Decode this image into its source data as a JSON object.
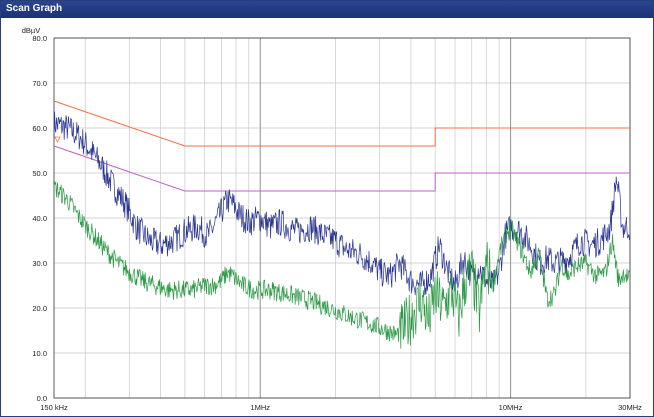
{
  "window": {
    "title": "Scan Graph"
  },
  "chart_data": {
    "type": "line",
    "ylabel": "dBµV",
    "xscale": "log",
    "xlim_hz": [
      150000,
      30000000
    ],
    "ylim": [
      0,
      80
    ],
    "grid": true,
    "yticks": [
      {
        "value": 80,
        "label": "80.0"
      },
      {
        "value": 70,
        "label": "70.0"
      },
      {
        "value": 60,
        "label": "60.0"
      },
      {
        "value": 50,
        "label": "50.0"
      },
      {
        "value": 40,
        "label": "40.0"
      },
      {
        "value": 30,
        "label": "30.0"
      },
      {
        "value": 20,
        "label": "20.0"
      },
      {
        "value": 10,
        "label": "10.0"
      },
      {
        "value": 0,
        "label": "0.0"
      }
    ],
    "xticks": [
      {
        "value": 150000,
        "label": "150 kHz"
      },
      {
        "value": 1000000,
        "label": "1MHz"
      },
      {
        "value": 10000000,
        "label": "10MHz"
      },
      {
        "value": 30000000,
        "label": "30MHz"
      }
    ],
    "limit_lines": [
      {
        "color": "#f07048",
        "points": [
          [
            150000,
            66
          ],
          [
            500000,
            56
          ],
          [
            5000000,
            56
          ],
          [
            5000000,
            60
          ],
          [
            30000000,
            60
          ]
        ]
      },
      {
        "color": "#c060c8",
        "points": [
          [
            150000,
            56
          ],
          [
            500000,
            46
          ],
          [
            5000000,
            46
          ],
          [
            5000000,
            50
          ],
          [
            30000000,
            50
          ]
        ]
      }
    ],
    "series": [
      {
        "color": "#2a3590",
        "x": [
          150000,
          170000,
          190000,
          210000,
          230000,
          260000,
          290000,
          320000,
          360000,
          400000,
          450000,
          500000,
          560000,
          620000,
          680000,
          740000,
          780000,
          820000,
          900000,
          1000000,
          1100000,
          1200000,
          1400000,
          1600000,
          1800000,
          2000000,
          2200000,
          2500000,
          2800000,
          3000000,
          3300000,
          3600000,
          4000000,
          4400000,
          4800000,
          5200000,
          5600000,
          6000000,
          6500000,
          7000000,
          7500000,
          8000000,
          8500000,
          9000000,
          9500000,
          10000000,
          11000000,
          12000000,
          13000000,
          14000000,
          15000000,
          17000000,
          19000000,
          21000000,
          23000000,
          25000000,
          26500000,
          28000000,
          30000000
        ],
        "y": [
          61,
          60,
          58,
          55,
          52,
          47,
          43,
          38,
          35,
          34,
          35,
          37,
          38,
          36,
          40,
          44,
          43,
          41,
          39,
          40,
          38,
          39,
          37,
          38,
          36,
          35,
          33,
          32,
          30,
          28,
          27,
          30,
          26,
          25,
          27,
          34,
          28,
          25,
          31,
          27,
          29,
          26,
          25,
          28,
          36,
          38,
          37,
          34,
          30,
          31,
          30,
          31,
          35,
          34,
          35,
          38,
          49,
          38,
          38
        ]
      },
      {
        "color": "#2c9a45",
        "x": [
          150000,
          170000,
          190000,
          210000,
          240000,
          270000,
          300000,
          340000,
          380000,
          430000,
          480000,
          540000,
          600000,
          650000,
          700000,
          740000,
          780000,
          850000,
          950000,
          1100000,
          1300000,
          1500000,
          1700000,
          1900000,
          2100000,
          2300000,
          2600000,
          2900000,
          3200000,
          3500000,
          3800000,
          4100000,
          4400000,
          4700000,
          5000000,
          5400000,
          5800000,
          6200000,
          6600000,
          7000000,
          7500000,
          8000000,
          8500000,
          9000000,
          9500000,
          10000000,
          11000000,
          12000000,
          13000000,
          14000000,
          15000000,
          16000000,
          17000000,
          18000000,
          20000000,
          22000000,
          24000000,
          25500000,
          27000000,
          28500000,
          30000000
        ],
        "y": [
          47,
          44,
          40,
          37,
          33,
          30,
          28,
          26,
          25,
          24,
          24,
          24,
          25,
          25,
          26,
          28,
          27,
          25,
          24,
          24,
          23,
          22,
          21,
          20,
          19,
          18,
          17,
          16,
          15,
          14,
          16,
          19,
          22,
          17,
          23,
          20,
          24,
          18,
          26,
          28,
          19,
          30,
          25,
          32,
          36,
          38,
          33,
          28,
          32,
          22,
          23,
          30,
          27,
          29,
          30,
          27,
          28,
          35,
          26,
          28,
          26
        ]
      }
    ]
  }
}
